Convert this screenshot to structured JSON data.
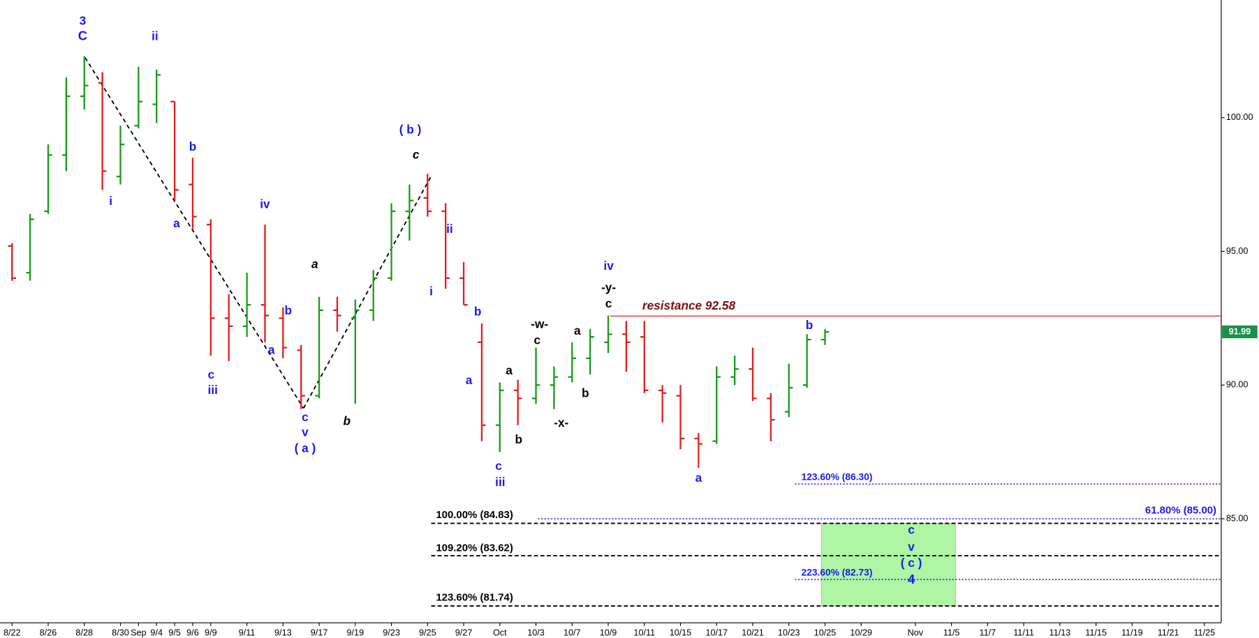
{
  "chart_data": {
    "type": "ohlc",
    "categories": [
      "8/22",
      null,
      "8/26",
      null,
      "8/28",
      null,
      "8/30",
      "Sep",
      "9/4",
      "9/5",
      "9/6",
      "9/9",
      null,
      "9/11",
      null,
      "9/13",
      null,
      "9/17",
      null,
      "9/19",
      null,
      "9/23",
      null,
      "9/25",
      null,
      "9/27",
      null,
      "Oct",
      null,
      "10/3",
      null,
      "10/7",
      null,
      "10/9",
      null,
      "10/11",
      null,
      "10/15",
      null,
      "10/17",
      null,
      "10/21",
      null,
      "10/23",
      null,
      "10/25",
      null,
      "10/29",
      null,
      null,
      "Nov",
      null,
      "11/5",
      null,
      "11/7",
      null,
      "11/11",
      null,
      "11/13",
      null,
      "11/15",
      null,
      "11/19",
      null,
      "11/21",
      null,
      "11/25"
    ],
    "open": [
      95.2,
      94.2,
      96.5,
      98.6,
      100.8,
      101.3,
      97.8,
      99.7,
      100.5,
      100.6,
      97.5,
      96.0,
      92.5,
      92.2,
      93.0,
      92.5,
      91.3,
      89.6,
      92.8,
      92.5,
      92.8,
      94.0,
      96.5,
      97.0,
      96.5,
      94.0,
      91.6,
      88.5,
      89.8,
      89.5,
      90.0,
      90.3,
      91.0,
      91.6,
      91.9,
      91.8,
      89.8,
      89.6,
      88.0,
      87.9,
      90.3,
      90.6,
      89.5,
      89.0,
      90.0,
      91.7,
      null,
      null,
      null,
      null,
      null,
      null,
      null,
      null,
      null,
      null,
      null,
      null,
      null,
      null,
      null,
      null,
      null,
      null,
      null,
      null,
      null
    ],
    "high": [
      95.3,
      96.4,
      99.0,
      101.5,
      102.3,
      101.7,
      99.7,
      101.9,
      101.8,
      100.6,
      98.5,
      96.2,
      93.4,
      94.2,
      96.0,
      92.9,
      91.5,
      93.3,
      93.3,
      93.2,
      94.3,
      96.8,
      97.5,
      97.9,
      96.8,
      94.6,
      92.3,
      90.1,
      90.2,
      91.4,
      90.7,
      91.6,
      92.1,
      92.6,
      92.4,
      92.4,
      90.0,
      90.0,
      88.2,
      90.7,
      91.1,
      91.4,
      89.7,
      90.8,
      91.9,
      92.1,
      null,
      null,
      null,
      null,
      null,
      null,
      null,
      null,
      null,
      null,
      null,
      null,
      null,
      null,
      null,
      null,
      null,
      null,
      null,
      null,
      null
    ],
    "low": [
      93.9,
      93.9,
      96.4,
      98.0,
      100.3,
      97.3,
      97.5,
      99.6,
      99.8,
      96.9,
      95.8,
      91.1,
      90.9,
      91.8,
      91.6,
      91.0,
      89.1,
      89.5,
      92.0,
      89.3,
      92.4,
      93.9,
      95.4,
      96.3,
      93.6,
      93.0,
      87.9,
      87.5,
      88.5,
      89.3,
      89.1,
      90.1,
      90.4,
      91.2,
      90.5,
      89.7,
      88.6,
      87.6,
      86.9,
      87.8,
      90.0,
      89.4,
      87.9,
      88.8,
      89.9,
      91.5,
      null,
      null,
      null,
      null,
      null,
      null,
      null,
      null,
      null,
      null,
      null,
      null,
      null,
      null,
      null,
      null,
      null,
      null,
      null,
      null,
      null
    ],
    "close": [
      94.0,
      96.2,
      98.6,
      100.8,
      101.2,
      98.0,
      99.0,
      100.6,
      101.6,
      97.3,
      96.3,
      92.5,
      92.2,
      93.0,
      92.6,
      91.4,
      89.6,
      92.8,
      92.6,
      92.8,
      94.0,
      96.5,
      96.9,
      96.5,
      94.0,
      93.0,
      88.5,
      89.8,
      89.5,
      90.0,
      90.3,
      91.0,
      91.8,
      91.9,
      91.6,
      89.8,
      89.7,
      88.0,
      87.8,
      90.3,
      90.6,
      89.5,
      88.7,
      89.9,
      91.7,
      91.99,
      null,
      null,
      null,
      null,
      null,
      null,
      null,
      null,
      null,
      null,
      null,
      null,
      null,
      null,
      null,
      null,
      null,
      null,
      null,
      null,
      null
    ],
    "up_color": "#1a9a1a",
    "down_color": "#e01e1e",
    "last_color": "#1a8f4a",
    "ylim": [
      81.11,
      104.4
    ],
    "yticks": [
      {
        "value": 85,
        "label": "85.00"
      },
      {
        "value": 90,
        "label": "90.00"
      },
      {
        "value": 95,
        "label": "95.00"
      },
      {
        "value": 100,
        "label": "100.00"
      }
    ],
    "resistance": {
      "label": "resistance 92.58",
      "value": 92.58,
      "color": "#e05050",
      "label_color": "#7a1010"
    },
    "levels": [
      {
        "label": "100.00% (84.83)",
        "value": 84.83,
        "color": "#000000",
        "style": "dashed"
      },
      {
        "label": "109.20% (83.62)",
        "value": 83.62,
        "color": "#000000",
        "style": "dashed"
      },
      {
        "label": "123.60% (81.74)",
        "value": 81.74,
        "color": "#000000",
        "style": "dashed"
      },
      {
        "label": "123.60% (86.30)",
        "value": 86.3,
        "color": "#1a1aee",
        "style": "dotted"
      },
      {
        "label": "61.80% (85.00)",
        "value": 85,
        "color": "#1a1aee",
        "style": "dotted"
      },
      {
        "label": "223.60% (82.73)",
        "value": 82.73,
        "color": "#1a1aee",
        "style": "dotted"
      }
    ],
    "zone_color": "#aef5a4",
    "annotations": [
      {
        "text": "3",
        "color": "#1a1aee"
      },
      {
        "text": "C",
        "color": "#1a1aee"
      },
      {
        "text": "ii",
        "color": "#1a1aee"
      },
      {
        "text": "i",
        "color": "#1a1aee"
      },
      {
        "text": "b",
        "color": "#1a1aee"
      },
      {
        "text": "a",
        "color": "#1a1aee"
      },
      {
        "text": "iv",
        "color": "#1a1aee"
      },
      {
        "text": "c",
        "color": "#1a1aee"
      },
      {
        "text": "iii",
        "color": "#1a1aee"
      },
      {
        "text": "b",
        "color": "#1a1aee"
      },
      {
        "text": "a",
        "color": "#1a1aee"
      },
      {
        "text": "c",
        "color": "#1a1aee"
      },
      {
        "text": "v",
        "color": "#1a1aee"
      },
      {
        "text": "( a )",
        "color": "#1a1aee"
      },
      {
        "text": "a",
        "color": "#000000",
        "italic": true
      },
      {
        "text": "b",
        "color": "#000000",
        "italic": true
      },
      {
        "text": "( b )",
        "color": "#1a1aee"
      },
      {
        "text": "c",
        "color": "#000000",
        "italic": true
      },
      {
        "text": "ii",
        "color": "#1a1aee"
      },
      {
        "text": "i",
        "color": "#1a1aee"
      },
      {
        "text": "b",
        "color": "#1a1aee"
      },
      {
        "text": "a",
        "color": "#1a1aee"
      },
      {
        "text": "c",
        "color": "#1a1aee"
      },
      {
        "text": "iii",
        "color": "#1a1aee"
      },
      {
        "text": "a",
        "color": "#000000"
      },
      {
        "text": "b",
        "color": "#000000"
      },
      {
        "text": "-w-",
        "color": "#000000"
      },
      {
        "text": "c",
        "color": "#000000"
      },
      {
        "text": "-x-",
        "color": "#000000"
      },
      {
        "text": "a",
        "color": "#000000"
      },
      {
        "text": "b",
        "color": "#000000"
      },
      {
        "text": "iv",
        "color": "#1a1aee"
      },
      {
        "text": "-y-",
        "color": "#000000"
      },
      {
        "text": "c",
        "color": "#000000"
      },
      {
        "text": "b",
        "color": "#1a1aee"
      },
      {
        "text": "a",
        "color": "#1a1aee"
      },
      {
        "text": "c",
        "color": "#1a1aee"
      },
      {
        "text": "v",
        "color": "#1a1aee"
      },
      {
        "text": "( c )",
        "color": "#1a1aee"
      },
      {
        "text": "4",
        "color": "#1a1aee"
      }
    ]
  }
}
